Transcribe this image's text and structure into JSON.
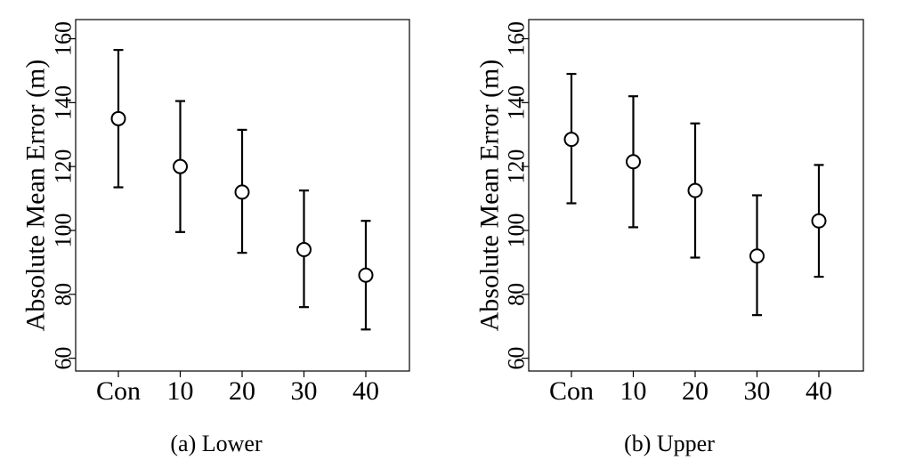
{
  "chart_data": [
    {
      "type": "scatter",
      "caption": "(a) Lower",
      "categories": [
        "Con",
        "10",
        "20",
        "30",
        "40"
      ],
      "ylabel": "Absolute Mean Error (m)",
      "xlabel": "",
      "ylim": [
        56,
        166
      ],
      "yticks": [
        60,
        80,
        100,
        120,
        140,
        160
      ],
      "grid": false,
      "marker": "open-circle",
      "series": [
        {
          "values": [
            135,
            120,
            112,
            94,
            86
          ],
          "lower": [
            113.5,
            99.5,
            93,
            76,
            69
          ],
          "upper": [
            156.5,
            140.5,
            131.5,
            112.5,
            103
          ]
        }
      ]
    },
    {
      "type": "scatter",
      "caption": "(b) Upper",
      "categories": [
        "Con",
        "10",
        "20",
        "30",
        "40"
      ],
      "ylabel": "Absolute Mean Error (m)",
      "xlabel": "",
      "ylim": [
        56,
        166
      ],
      "yticks": [
        60,
        80,
        100,
        120,
        140,
        160
      ],
      "grid": false,
      "marker": "open-circle",
      "series": [
        {
          "values": [
            128.5,
            121.5,
            112.5,
            92,
            103
          ],
          "lower": [
            108.5,
            101,
            91.5,
            73.5,
            85.5
          ],
          "upper": [
            149,
            142,
            133.5,
            111,
            120.5
          ]
        }
      ]
    }
  ]
}
